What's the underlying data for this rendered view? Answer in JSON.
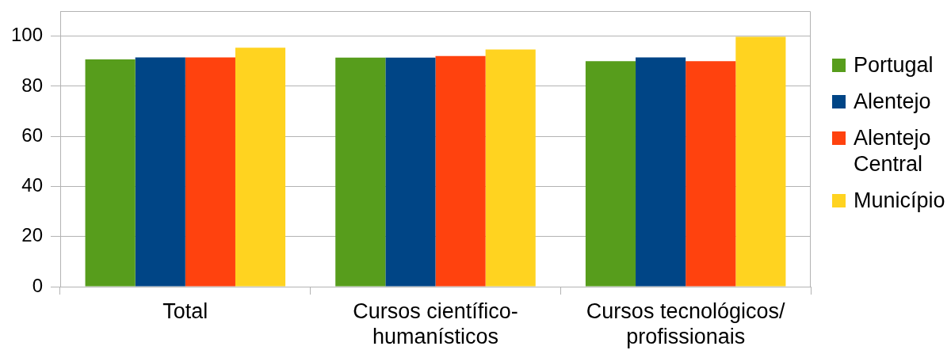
{
  "chart_data": {
    "type": "bar",
    "categories": [
      "Total",
      "Cursos científico-humanísticos",
      "Cursos tecnológicos/profissionais"
    ],
    "series": [
      {
        "name": "Portugal",
        "color": "#579d1c",
        "values": [
          90.7,
          91.4,
          90.0
        ]
      },
      {
        "name": "Alentejo",
        "color": "#004586",
        "values": [
          91.5,
          91.4,
          91.5
        ]
      },
      {
        "name": "Alentejo Central",
        "color": "#ff420e",
        "values": [
          91.5,
          92.1,
          90.0
        ]
      },
      {
        "name": "Município",
        "color": "#ffd320",
        "values": [
          95.4,
          94.7,
          99.7
        ]
      }
    ],
    "ylim": [
      0,
      110
    ],
    "yticks": [
      0,
      20,
      40,
      60,
      80,
      100
    ],
    "grid": "y",
    "legend": "right"
  }
}
